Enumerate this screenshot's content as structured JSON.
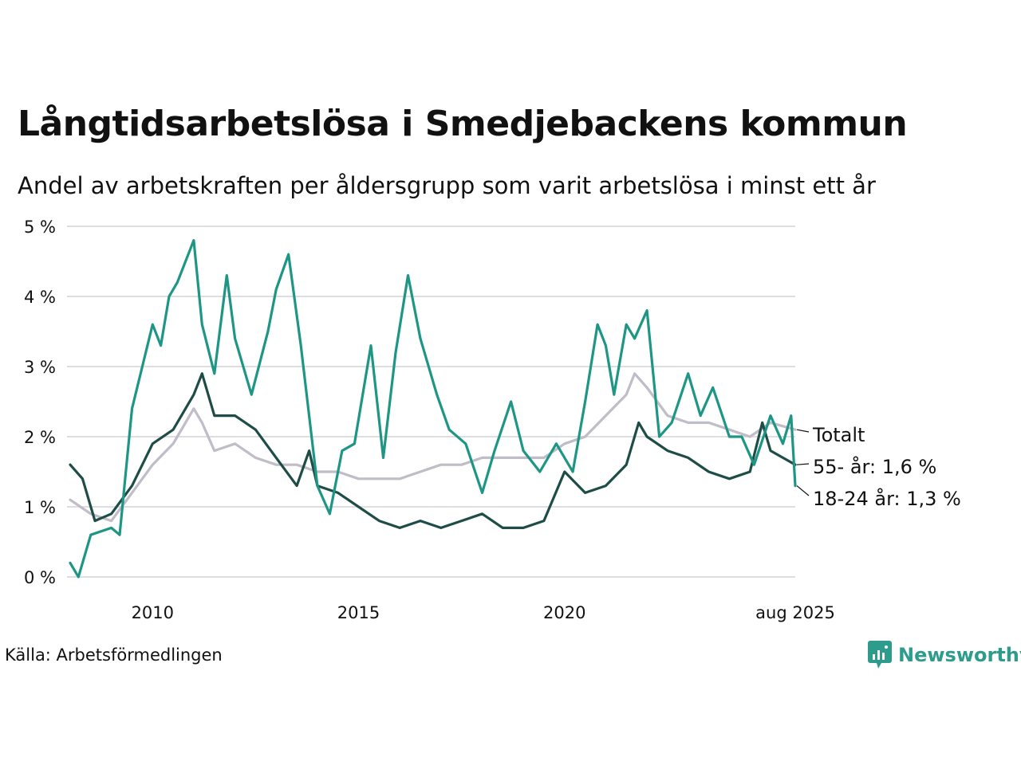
{
  "title": "Långtidsarbetslösa i Smedjebackens kommun",
  "subtitle": "Andel av arbetskraften per åldersgrupp som varit arbetslösa i minst ett år",
  "source": "Källa: Arbetsförmedlingen",
  "brand": "Newsworthy",
  "chart_data": {
    "type": "line",
    "ylim": [
      0,
      5
    ],
    "y_ticks": [
      0,
      1,
      2,
      3,
      4,
      5
    ],
    "y_tick_labels": [
      "0 %",
      "1 %",
      "2 %",
      "3 %",
      "4 %",
      "5 %"
    ],
    "x_ticks": [
      2010,
      2015,
      2020,
      2025.6
    ],
    "x_tick_labels": [
      "2010",
      "2015",
      "2020",
      "aug 2025"
    ],
    "xlim": [
      2008.0,
      2025.6
    ],
    "grid": true,
    "series": [
      {
        "name": "Totalt",
        "label": "Totalt",
        "color": "#c0bcc8",
        "x": [
          2008.0,
          2008.5,
          2009.0,
          2009.5,
          2010.0,
          2010.5,
          2011.0,
          2011.2,
          2011.5,
          2012.0,
          2012.5,
          2013.0,
          2013.5,
          2014.0,
          2014.5,
          2015.0,
          2015.5,
          2016.0,
          2016.5,
          2017.0,
          2017.5,
          2018.0,
          2018.5,
          2019.0,
          2019.5,
          2020.0,
          2020.5,
          2021.0,
          2021.5,
          2021.7,
          2022.0,
          2022.5,
          2023.0,
          2023.5,
          2024.0,
          2024.5,
          2025.0,
          2025.6
        ],
        "values": [
          1.1,
          0.9,
          0.8,
          1.2,
          1.6,
          1.9,
          2.4,
          2.2,
          1.8,
          1.9,
          1.7,
          1.6,
          1.6,
          1.5,
          1.5,
          1.4,
          1.4,
          1.4,
          1.5,
          1.6,
          1.6,
          1.7,
          1.7,
          1.7,
          1.7,
          1.9,
          2.0,
          2.3,
          2.6,
          2.9,
          2.7,
          2.3,
          2.2,
          2.2,
          2.1,
          2.0,
          2.2,
          2.1
        ]
      },
      {
        "name": "55- år",
        "label": "55- år: 1,6 %",
        "color": "#1e4d47",
        "x": [
          2008.0,
          2008.3,
          2008.6,
          2009.0,
          2009.5,
          2010.0,
          2010.5,
          2011.0,
          2011.2,
          2011.5,
          2012.0,
          2012.5,
          2013.0,
          2013.5,
          2013.8,
          2014.0,
          2014.5,
          2015.0,
          2015.5,
          2016.0,
          2016.5,
          2017.0,
          2017.5,
          2018.0,
          2018.5,
          2019.0,
          2019.5,
          2020.0,
          2020.5,
          2021.0,
          2021.5,
          2021.8,
          2022.0,
          2022.5,
          2023.0,
          2023.5,
          2024.0,
          2024.5,
          2024.8,
          2025.0,
          2025.3,
          2025.6
        ],
        "values": [
          1.6,
          1.4,
          0.8,
          0.9,
          1.3,
          1.9,
          2.1,
          2.6,
          2.9,
          2.3,
          2.3,
          2.1,
          1.7,
          1.3,
          1.8,
          1.3,
          1.2,
          1.0,
          0.8,
          0.7,
          0.8,
          0.7,
          0.8,
          0.9,
          0.7,
          0.7,
          0.8,
          1.5,
          1.2,
          1.3,
          1.6,
          2.2,
          2.0,
          1.8,
          1.7,
          1.5,
          1.4,
          1.5,
          2.2,
          1.8,
          1.7,
          1.6
        ]
      },
      {
        "name": "18-24 år",
        "label": "18-24 år: 1,3 %",
        "color": "#1e9685",
        "x": [
          2008.0,
          2008.2,
          2008.5,
          2009.0,
          2009.2,
          2009.5,
          2010.0,
          2010.2,
          2010.4,
          2010.6,
          2011.0,
          2011.2,
          2011.5,
          2011.8,
          2012.0,
          2012.4,
          2012.8,
          2013.0,
          2013.3,
          2013.6,
          2014.0,
          2014.3,
          2014.6,
          2014.9,
          2015.3,
          2015.6,
          2015.9,
          2016.2,
          2016.5,
          2016.9,
          2017.2,
          2017.6,
          2018.0,
          2018.3,
          2018.7,
          2019.0,
          2019.4,
          2019.8,
          2020.2,
          2020.5,
          2020.8,
          2021.0,
          2021.2,
          2021.5,
          2021.7,
          2022.0,
          2022.3,
          2022.6,
          2023.0,
          2023.3,
          2023.6,
          2024.0,
          2024.3,
          2024.6,
          2025.0,
          2025.3,
          2025.5,
          2025.6
        ],
        "values": [
          0.2,
          0.0,
          0.6,
          0.7,
          0.6,
          2.4,
          3.6,
          3.3,
          4.0,
          4.2,
          4.8,
          3.6,
          2.9,
          4.3,
          3.4,
          2.6,
          3.5,
          4.1,
          4.6,
          3.3,
          1.3,
          0.9,
          1.8,
          1.9,
          3.3,
          1.7,
          3.2,
          4.3,
          3.4,
          2.6,
          2.1,
          1.9,
          1.2,
          1.8,
          2.5,
          1.8,
          1.5,
          1.9,
          1.5,
          2.5,
          3.6,
          3.3,
          2.6,
          3.6,
          3.4,
          3.8,
          2.0,
          2.2,
          2.9,
          2.3,
          2.7,
          2.0,
          2.0,
          1.6,
          2.3,
          1.9,
          2.3,
          1.3
        ]
      }
    ]
  }
}
